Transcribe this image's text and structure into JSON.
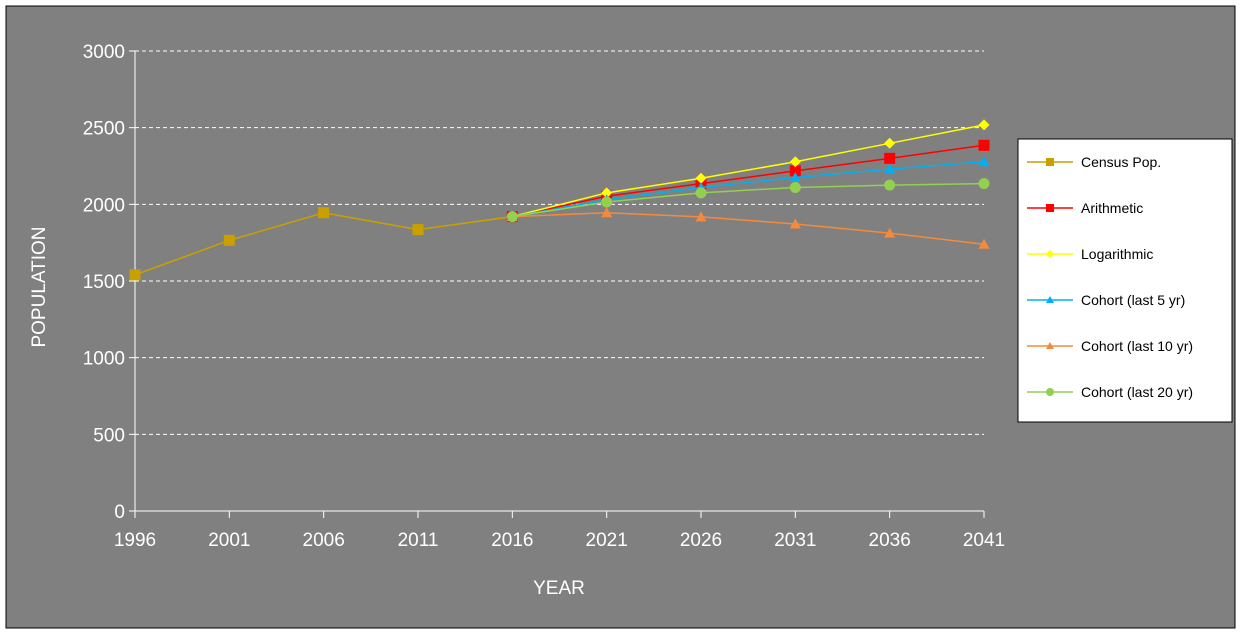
{
  "chart_data": {
    "type": "line",
    "xlabel": "YEAR",
    "ylabel": "POPULATION",
    "ylim": [
      0,
      3000
    ],
    "y_ticks": [
      "0",
      "500",
      "1000",
      "1500",
      "2000",
      "2500",
      "3000"
    ],
    "categories": [
      "1996",
      "2001",
      "2006",
      "2011",
      "2016",
      "2021",
      "2026",
      "2031",
      "2036",
      "2041"
    ],
    "grid": "horizontal dashed",
    "legend_position": "right",
    "background_color": "#808080",
    "series": [
      {
        "name": "Census Pop.",
        "color": "#C9A000",
        "marker": "square",
        "values": [
          1540,
          1765,
          1945,
          1835,
          1920,
          null,
          null,
          null,
          null,
          null
        ]
      },
      {
        "name": "Arithmetic",
        "color": "#FF0000",
        "marker": "square",
        "values": [
          null,
          null,
          null,
          null,
          1920,
          2053,
          2135,
          2218,
          2300,
          2385
        ]
      },
      {
        "name": "Logarithmic",
        "color": "#FFFF00",
        "marker": "diamond",
        "values": [
          null,
          null,
          null,
          null,
          1920,
          2075,
          2170,
          2278,
          2398,
          2518
        ]
      },
      {
        "name": "Cohort (last 5 yr)",
        "color": "#00B0F0",
        "marker": "triangle",
        "values": [
          null,
          null,
          null,
          null,
          1920,
          2030,
          2110,
          2175,
          2230,
          2278
        ]
      },
      {
        "name": "Cohort (last 10 yr)",
        "color": "#F58A3C",
        "marker": "triangle",
        "values": [
          null,
          null,
          null,
          null,
          1920,
          1945,
          1918,
          1872,
          1812,
          1740
        ]
      },
      {
        "name": "Cohort (last 20 yr)",
        "color": "#92D050",
        "marker": "circle",
        "values": [
          null,
          null,
          null,
          null,
          1920,
          2015,
          2075,
          2110,
          2125,
          2135
        ]
      }
    ]
  }
}
